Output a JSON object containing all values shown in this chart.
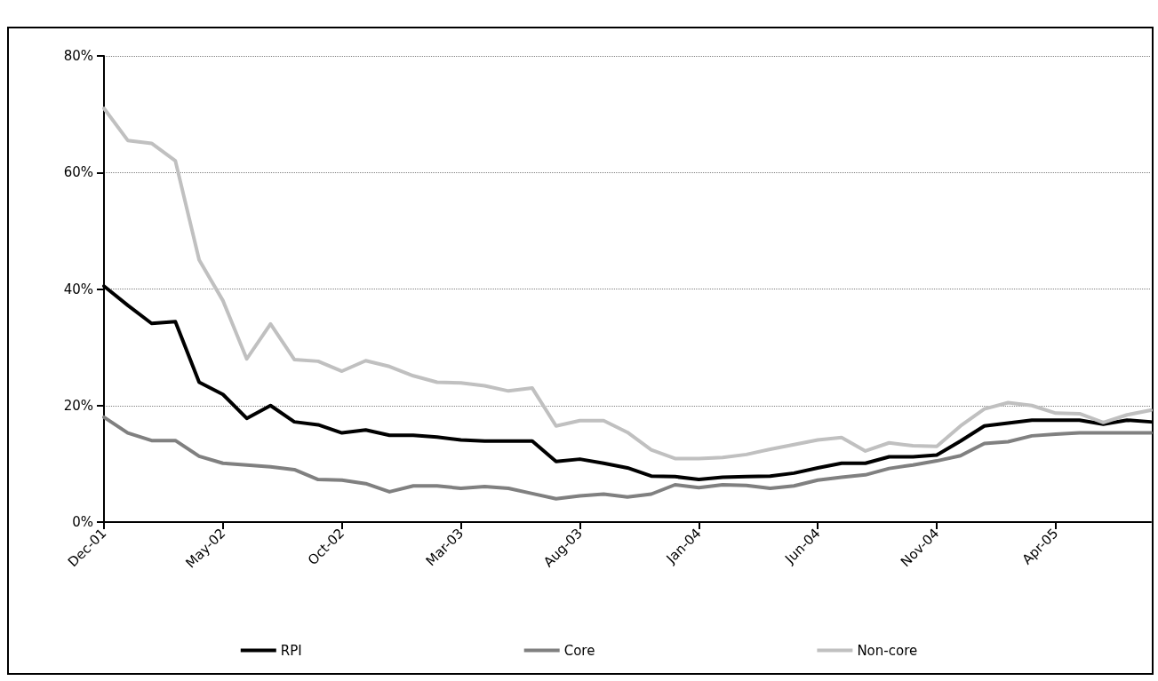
{
  "chart_data": {
    "type": "line",
    "categories": [
      "Dec-01",
      null,
      null,
      null,
      null,
      "May-02",
      null,
      null,
      null,
      null,
      "Oct-02",
      null,
      null,
      null,
      null,
      "Mar-03",
      null,
      null,
      null,
      null,
      "Aug-03",
      null,
      null,
      null,
      null,
      "Jan-04",
      null,
      null,
      null,
      null,
      "Jun-04",
      null,
      null,
      null,
      null,
      "Nov-04",
      null,
      null,
      null,
      null,
      "Apr-05",
      null,
      null,
      null,
      null
    ],
    "series": [
      {
        "name": "RPI",
        "color": "#000000",
        "values": [
          40.5,
          37.2,
          34.1,
          34.4,
          24,
          21.9,
          17.8,
          20,
          17.2,
          16.7,
          15.3,
          15.8,
          14.9,
          14.9,
          14.6,
          14.1,
          13.9,
          13.9,
          13.9,
          10.4,
          10.8,
          10.1,
          9.3,
          7.9,
          7.8,
          7.3,
          7.7,
          7.8,
          7.9,
          8.4,
          9.3,
          10.1,
          10.1,
          11.2,
          11.2,
          11.5,
          13.9,
          16.5,
          17,
          17.5,
          17.5,
          17.5,
          16.8,
          17.5,
          17.2
        ]
      },
      {
        "name": "Core",
        "color": "#808080",
        "values": [
          18,
          15.3,
          14,
          14,
          11.3,
          10.1,
          9.8,
          9.5,
          9,
          7.3,
          7.2,
          6.6,
          5.2,
          6.2,
          6.2,
          5.8,
          6.1,
          5.8,
          4.9,
          4,
          4.5,
          4.8,
          4.3,
          4.8,
          6.4,
          5.9,
          6.4,
          6.3,
          5.8,
          6.2,
          7.2,
          7.7,
          8.1,
          9.2,
          9.8,
          10.5,
          11.4,
          13.5,
          13.8,
          14.8,
          15.1,
          15.3,
          15.3,
          15.3,
          15.3
        ]
      },
      {
        "name": "Non-core",
        "color": "#c0c0c0",
        "values": [
          71,
          65.5,
          65,
          62,
          45,
          38,
          28,
          34,
          27.9,
          27.6,
          25.9,
          27.7,
          26.7,
          25.1,
          24,
          23.9,
          23.4,
          22.5,
          23,
          16.5,
          17.4,
          17.4,
          15.4,
          12.4,
          10.9,
          10.9,
          11.1,
          11.6,
          12.5,
          13.3,
          14.1,
          14.5,
          12.2,
          13.6,
          13.1,
          13,
          16.5,
          19.4,
          20.5,
          20,
          18.7,
          18.6,
          17.1,
          18.4,
          19.2
        ]
      }
    ],
    "ylim": [
      0,
      80
    ],
    "yticks": [
      {
        "value": 0,
        "label": "0%"
      },
      {
        "value": 20,
        "label": "20%"
      },
      {
        "value": 40,
        "label": "40%"
      },
      {
        "value": 60,
        "label": "60%"
      },
      {
        "value": 80,
        "label": "80%"
      }
    ],
    "grid": "y",
    "legend": "bottom",
    "marker": "none",
    "line_style": "solid"
  }
}
